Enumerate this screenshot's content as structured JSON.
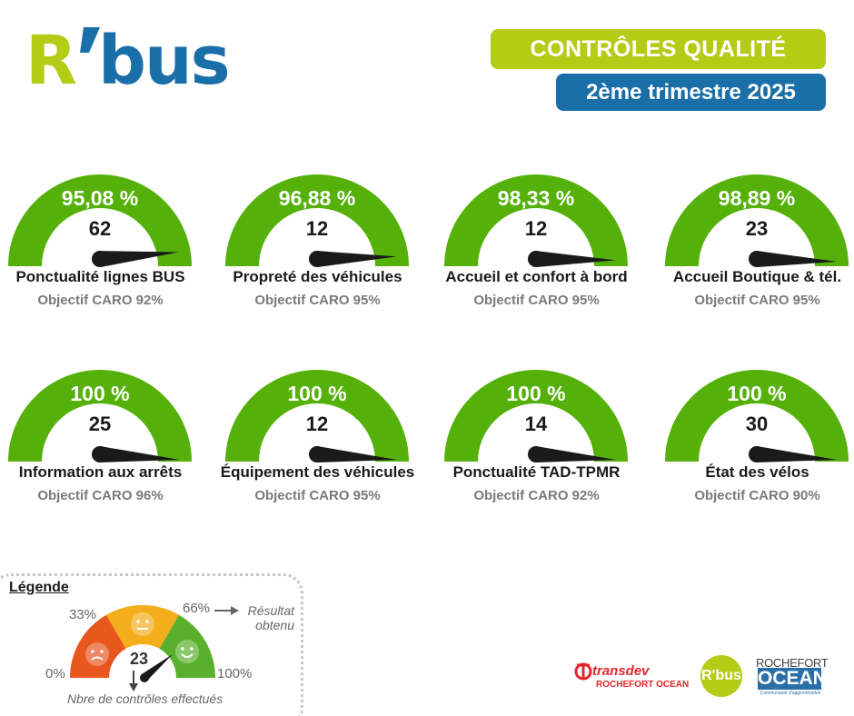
{
  "colors": {
    "green": "#55b10a",
    "lime": "#b5cc17",
    "blue": "#1b6fa8",
    "needle": "#1a1a1a",
    "objective_gray": "#7a7a7a",
    "legend_red": "#e8571d",
    "legend_yellow": "#f4ad1b",
    "legend_green": "#59b02d",
    "transdev_red": "#e4262c"
  },
  "header": {
    "logo_r": "R",
    "logo_bus": "bus",
    "title": "CONTRÔLES QUALITÉ",
    "period": "2ème trimestre 2025"
  },
  "gauges": [
    {
      "percent": "95,08 %",
      "value": 95.08,
      "count": "62",
      "label": "Ponctualité lignes BUS",
      "objective": "Objectif CARO 92%"
    },
    {
      "percent": "96,88 %",
      "value": 96.88,
      "count": "12",
      "label": "Propreté des véhicules",
      "objective": "Objectif CARO 95%"
    },
    {
      "percent": "98,33 %",
      "value": 98.33,
      "count": "12",
      "label": "Accueil et confort à bord",
      "objective": "Objectif CARO 95%"
    },
    {
      "percent": "98,89 %",
      "value": 98.89,
      "count": "23",
      "label": "Accueil Boutique & tél.",
      "objective": "Objectif CARO 95%"
    },
    {
      "percent": "100 %",
      "value": 100,
      "count": "25",
      "label": "Information aux arrêts",
      "objective": "Objectif CARO 96%"
    },
    {
      "percent": "100 %",
      "value": 100,
      "count": "12",
      "label": "Équipement des véhicules",
      "objective": "Objectif CARO 95%"
    },
    {
      "percent": "100 %",
      "value": 100,
      "count": "14",
      "label": "Ponctualité TAD-TPMR",
      "objective": "Objectif CARO 92%"
    },
    {
      "percent": "100 %",
      "value": 100,
      "count": "30",
      "label": "État des vélos",
      "objective": "Objectif CARO 90%"
    }
  ],
  "legend": {
    "title": "Légende",
    "zero": "0%",
    "low": "33%",
    "mid": "66%",
    "high": "100%",
    "example_count": "23",
    "result_label": "Résultat obtenu",
    "count_label": "Nbre de contrôles effectués"
  },
  "footer": {
    "transdev_name": "transdev",
    "transdev_sub": "ROCHEFORT OCEAN",
    "rbus": "R'bus",
    "rochefort_line1": "ROCHEFORT",
    "rochefort_line2": "OCEAN",
    "rochefort_line3": "Communauté d'agglomération"
  }
}
